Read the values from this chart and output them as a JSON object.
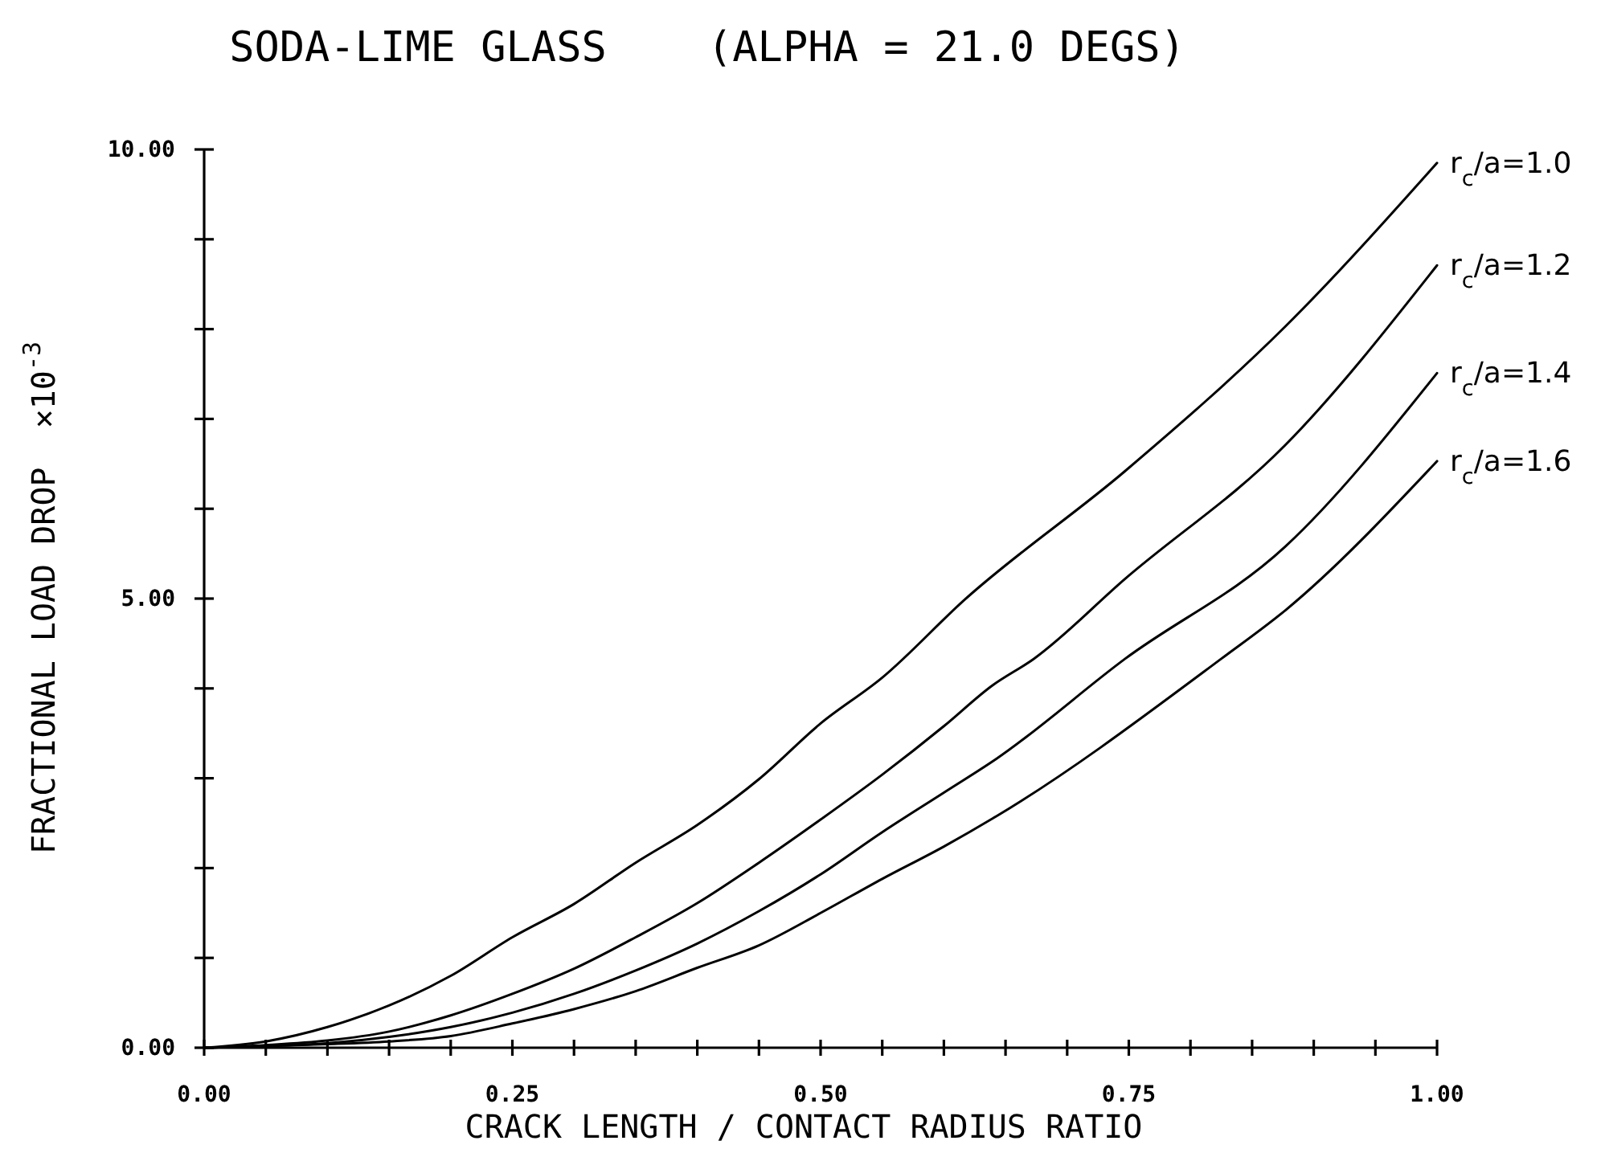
{
  "chart_data": {
    "type": "line",
    "title": "SODA-LIME GLASS    (ALPHA = 21.0 DEGS)",
    "xlabel": "CRACK LENGTH / CONTACT RADIUS RATIO",
    "ylabel": "FRACTIONAL LOAD DROP  ×10$^{-3}$",
    "xlim": [
      0,
      1
    ],
    "ylim": [
      0,
      10
    ],
    "xticks": [
      {
        "value": 0,
        "label": "0.00"
      },
      {
        "value": 0.05,
        "label": null
      },
      {
        "value": 0.1,
        "label": null
      },
      {
        "value": 0.15,
        "label": null
      },
      {
        "value": 0.2,
        "label": null
      },
      {
        "value": 0.25,
        "label": "0.25"
      },
      {
        "value": 0.3,
        "label": null
      },
      {
        "value": 0.35,
        "label": null
      },
      {
        "value": 0.4,
        "label": null
      },
      {
        "value": 0.45,
        "label": null
      },
      {
        "value": 0.5,
        "label": "0.50"
      },
      {
        "value": 0.55,
        "label": null
      },
      {
        "value": 0.6,
        "label": null
      },
      {
        "value": 0.65,
        "label": null
      },
      {
        "value": 0.7,
        "label": null
      },
      {
        "value": 0.75,
        "label": "0.75"
      },
      {
        "value": 0.8,
        "label": null
      },
      {
        "value": 0.85,
        "label": null
      },
      {
        "value": 0.9,
        "label": null
      },
      {
        "value": 0.95,
        "label": null
      },
      {
        "value": 1,
        "label": "1.00"
      }
    ],
    "yticks": [
      {
        "value": 0,
        "label": "0.00"
      },
      {
        "value": 1,
        "label": null
      },
      {
        "value": 2,
        "label": null
      },
      {
        "value": 3,
        "label": null
      },
      {
        "value": 4,
        "label": null
      },
      {
        "value": 5,
        "label": "5.00"
      },
      {
        "value": 6,
        "label": null
      },
      {
        "value": 7,
        "label": null
      },
      {
        "value": 8,
        "label": null
      },
      {
        "value": 9,
        "label": null
      },
      {
        "value": 10,
        "label": "10.00"
      }
    ],
    "grid": false,
    "legend": false,
    "marker": "none",
    "line_style": "solid",
    "series": [
      {
        "name": "r$_{c}$/a=1.0",
        "color": "#000000",
        "x": [
          0,
          0.05,
          0.1,
          0.15,
          0.2,
          0.25,
          0.3,
          0.35,
          0.4,
          0.45,
          0.5,
          0.55,
          0.617,
          0.747,
          0.877,
          1.0
        ],
        "values": [
          0,
          0.07,
          0.23,
          0.47,
          0.8,
          1.23,
          1.6,
          2.06,
          2.48,
          2.99,
          3.61,
          4.12,
          4.99,
          6.42,
          8.03,
          9.85
        ]
      },
      {
        "name": "r$_{c}$/a=1.2",
        "color": "#000000",
        "x": [
          0,
          0.05,
          0.1,
          0.15,
          0.2,
          0.25,
          0.3,
          0.35,
          0.4,
          0.45,
          0.5,
          0.55,
          0.6,
          0.639,
          0.673,
          0.747,
          0.877,
          1.0
        ],
        "values": [
          0,
          0.03,
          0.08,
          0.18,
          0.36,
          0.6,
          0.88,
          1.23,
          1.61,
          2.06,
          2.54,
          3.04,
          3.58,
          4.03,
          4.33,
          5.22,
          6.71,
          8.71
        ]
      },
      {
        "name": "r$_{c}$/a=1.4",
        "color": "#000000",
        "x": [
          0,
          0.05,
          0.1,
          0.15,
          0.2,
          0.25,
          0.3,
          0.35,
          0.4,
          0.45,
          0.5,
          0.55,
          0.6,
          0.643,
          0.747,
          0.877,
          1.0
        ],
        "values": [
          0,
          0.02,
          0.05,
          0.12,
          0.23,
          0.39,
          0.6,
          0.86,
          1.16,
          1.52,
          1.93,
          2.4,
          2.84,
          3.22,
          4.33,
          5.58,
          7.51
        ]
      },
      {
        "name": "r$_{c}$/a=1.6",
        "color": "#000000",
        "x": [
          0,
          0.05,
          0.1,
          0.15,
          0.2,
          0.25,
          0.3,
          0.35,
          0.4,
          0.45,
          0.5,
          0.55,
          0.6,
          0.643,
          0.825,
          0.877,
          1.0
        ],
        "values": [
          0,
          0.02,
          0.04,
          0.07,
          0.13,
          0.27,
          0.43,
          0.63,
          0.89,
          1.14,
          1.5,
          1.88,
          2.24,
          2.58,
          4.33,
          4.87,
          6.53
        ]
      }
    ]
  }
}
